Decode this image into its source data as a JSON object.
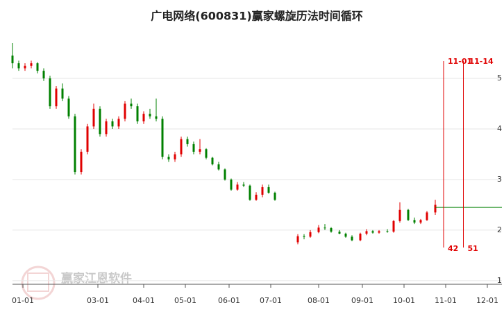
{
  "chart_data": {
    "type": "candlestick",
    "title": "广电网络(600831)赢家螺旋历法时间循环",
    "watermark": "赢家江恩软件",
    "up_color": "#e00000",
    "down_color": "#008000",
    "xlim": [
      -5,
      230
    ],
    "ylim": [
      0.93,
      6.07
    ],
    "xticks": [
      {
        "value": 0,
        "label": "01-01"
      },
      {
        "value": 36,
        "label": "03-01"
      },
      {
        "value": 58,
        "label": "04-01"
      },
      {
        "value": 78,
        "label": "05-01"
      },
      {
        "value": 99,
        "label": "06-01"
      },
      {
        "value": 119,
        "label": "07-01"
      },
      {
        "value": 142,
        "label": "08-01"
      },
      {
        "value": 163,
        "label": "09-01"
      },
      {
        "value": 183,
        "label": "10-01"
      },
      {
        "value": 203,
        "label": "11-01"
      },
      {
        "value": 223,
        "label": "12-01"
      }
    ],
    "yticks": [
      1,
      2,
      3,
      4,
      5
    ],
    "grid": true,
    "candles": {
      "x": [
        -5,
        -2,
        1,
        4,
        7,
        10,
        13,
        16,
        19,
        22,
        25,
        28,
        31,
        34,
        37,
        40,
        43,
        46,
        49,
        52,
        55,
        58,
        61,
        64,
        67,
        70,
        73,
        76,
        79,
        82,
        85,
        88,
        91,
        94,
        97,
        100,
        103,
        106,
        109,
        112,
        115,
        118,
        121,
        132,
        135,
        138,
        142,
        145,
        148,
        152,
        155,
        158,
        162,
        165,
        168,
        171,
        175,
        178,
        181,
        185,
        188,
        191,
        194,
        198
      ],
      "open": [
        5.45,
        5.3,
        5.2,
        5.25,
        5.3,
        5.15,
        5.0,
        4.45,
        4.8,
        4.6,
        4.25,
        3.15,
        3.55,
        4.05,
        4.4,
        3.9,
        4.15,
        4.05,
        4.2,
        4.5,
        4.45,
        4.15,
        4.3,
        4.25,
        4.2,
        3.45,
        3.4,
        3.5,
        3.8,
        3.7,
        3.55,
        3.6,
        3.43,
        3.3,
        3.2,
        3.0,
        2.8,
        2.9,
        2.88,
        2.6,
        2.7,
        2.85,
        2.74,
        1.76,
        1.88,
        1.87,
        1.96,
        2.05,
        2.04,
        1.97,
        1.93,
        1.87,
        1.8,
        1.93,
        1.98,
        1.95,
        1.98,
        1.97,
        2.18,
        2.4,
        2.2,
        2.15,
        2.2,
        2.35
      ],
      "high": [
        5.7,
        5.35,
        5.3,
        5.35,
        5.32,
        5.2,
        5.05,
        4.85,
        4.9,
        4.65,
        4.3,
        3.6,
        4.1,
        4.5,
        4.45,
        4.2,
        4.2,
        4.25,
        4.55,
        4.6,
        4.5,
        4.35,
        4.4,
        4.6,
        4.25,
        3.5,
        3.55,
        3.85,
        3.85,
        3.75,
        3.8,
        3.62,
        3.45,
        3.35,
        3.22,
        3.02,
        2.95,
        2.95,
        2.9,
        2.75,
        2.9,
        2.9,
        2.76,
        1.92,
        1.92,
        2.0,
        2.1,
        2.12,
        2.06,
        2.0,
        1.95,
        1.9,
        1.95,
        2.02,
        2.0,
        2.0,
        2.02,
        2.2,
        2.55,
        2.42,
        2.25,
        2.22,
        2.38,
        2.6
      ],
      "low": [
        5.2,
        5.15,
        5.15,
        5.2,
        5.1,
        4.95,
        4.4,
        4.4,
        4.55,
        4.2,
        3.1,
        3.1,
        3.5,
        4.0,
        3.85,
        3.85,
        4.0,
        4.0,
        4.15,
        4.4,
        4.1,
        4.1,
        4.2,
        4.15,
        3.4,
        3.35,
        3.35,
        3.45,
        3.65,
        3.5,
        3.5,
        3.4,
        3.28,
        3.18,
        2.98,
        2.78,
        2.78,
        2.85,
        2.58,
        2.58,
        2.65,
        2.72,
        2.58,
        1.72,
        1.82,
        1.85,
        1.94,
        2.0,
        1.95,
        1.92,
        1.85,
        1.78,
        1.78,
        1.9,
        1.93,
        1.93,
        1.95,
        1.95,
        2.15,
        2.18,
        2.12,
        2.12,
        2.18,
        2.3
      ],
      "close": [
        5.3,
        5.2,
        5.25,
        5.3,
        5.15,
        5.0,
        4.45,
        4.8,
        4.6,
        4.25,
        3.15,
        3.55,
        4.05,
        4.4,
        3.9,
        4.15,
        4.05,
        4.2,
        4.5,
        4.45,
        4.15,
        4.3,
        4.25,
        4.2,
        3.45,
        3.4,
        3.5,
        3.8,
        3.7,
        3.55,
        3.6,
        3.43,
        3.3,
        3.2,
        3.0,
        2.8,
        2.9,
        2.88,
        2.6,
        2.7,
        2.85,
        2.74,
        2.6,
        1.88,
        1.87,
        1.96,
        2.05,
        2.04,
        1.97,
        1.93,
        1.87,
        1.8,
        1.93,
        1.98,
        1.95,
        1.98,
        1.97,
        2.18,
        2.4,
        2.2,
        2.15,
        2.2,
        2.35,
        2.5
      ]
    },
    "last_price": 2.45,
    "cycle_lines": [
      {
        "x": 202,
        "label": "11-01",
        "count": 42
      },
      {
        "x": 211.5,
        "label": "11-14",
        "count": 51
      }
    ]
  }
}
